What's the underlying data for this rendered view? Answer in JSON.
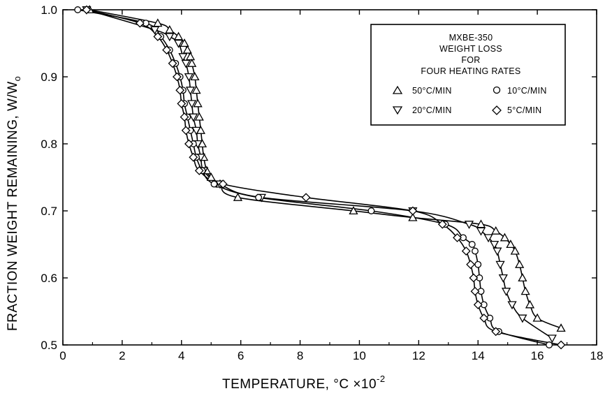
{
  "chart_data": {
    "type": "line",
    "xlabel": "TEMPERATURE, °C ×10",
    "xlabel_exponent": "-2",
    "ylabel": "FRACTION WEIGHT REMAINING,  W/W",
    "ylabel_subscript": "o",
    "xlim": [
      0,
      18
    ],
    "ylim": [
      0.5,
      1.0
    ],
    "x_ticks": [
      "0",
      "2",
      "4",
      "6",
      "8",
      "10",
      "12",
      "14",
      "16",
      "18"
    ],
    "y_ticks": [
      "0.5",
      "0.6",
      "0.7",
      "0.8",
      "0.9",
      "1.0"
    ],
    "grid": false,
    "legend": {
      "placement": "top-right",
      "title_lines": [
        "MXBE-350",
        "WEIGHT LOSS",
        "FOR",
        "FOUR HEATING RATES"
      ],
      "entries": [
        {
          "marker": "triangle-up",
          "label": "50°C/MIN"
        },
        {
          "marker": "circle",
          "label": "10°C/MIN"
        },
        {
          "marker": "triangle-down",
          "label": "20°C/MIN"
        },
        {
          "marker": "diamond",
          "label": "5°C/MIN"
        }
      ]
    },
    "series": [
      {
        "name": "50°C/MIN",
        "marker": "triangle-up",
        "points": [
          [
            0.9,
            1.0
          ],
          [
            3.2,
            0.98
          ],
          [
            3.6,
            0.97
          ],
          [
            3.9,
            0.96
          ],
          [
            4.1,
            0.95
          ],
          [
            4.2,
            0.94
          ],
          [
            4.3,
            0.93
          ],
          [
            4.35,
            0.92
          ],
          [
            4.45,
            0.9
          ],
          [
            4.5,
            0.88
          ],
          [
            4.55,
            0.86
          ],
          [
            4.6,
            0.84
          ],
          [
            4.65,
            0.82
          ],
          [
            4.7,
            0.8
          ],
          [
            4.75,
            0.78
          ],
          [
            4.85,
            0.76
          ],
          [
            5.0,
            0.75
          ],
          [
            5.3,
            0.74
          ],
          [
            5.9,
            0.72
          ],
          [
            9.8,
            0.7
          ],
          [
            11.8,
            0.69
          ],
          [
            14.1,
            0.68
          ],
          [
            14.6,
            0.67
          ],
          [
            14.9,
            0.66
          ],
          [
            15.1,
            0.65
          ],
          [
            15.25,
            0.64
          ],
          [
            15.4,
            0.62
          ],
          [
            15.5,
            0.6
          ],
          [
            15.6,
            0.58
          ],
          [
            15.75,
            0.56
          ],
          [
            16.0,
            0.54
          ],
          [
            16.8,
            0.525
          ]
        ]
      },
      {
        "name": "20°C/MIN",
        "marker": "triangle-down",
        "points": [
          [
            0.8,
            1.0
          ],
          [
            3.1,
            0.97
          ],
          [
            3.6,
            0.96
          ],
          [
            3.9,
            0.95
          ],
          [
            4.05,
            0.93
          ],
          [
            4.15,
            0.92
          ],
          [
            4.25,
            0.9
          ],
          [
            4.3,
            0.88
          ],
          [
            4.35,
            0.86
          ],
          [
            4.4,
            0.84
          ],
          [
            4.5,
            0.82
          ],
          [
            4.55,
            0.8
          ],
          [
            4.65,
            0.78
          ],
          [
            4.75,
            0.76
          ],
          [
            5.3,
            0.74
          ],
          [
            6.7,
            0.72
          ],
          [
            11.8,
            0.7
          ],
          [
            13.7,
            0.68
          ],
          [
            14.1,
            0.67
          ],
          [
            14.35,
            0.66
          ],
          [
            14.55,
            0.65
          ],
          [
            14.65,
            0.64
          ],
          [
            14.75,
            0.62
          ],
          [
            14.85,
            0.6
          ],
          [
            14.95,
            0.58
          ],
          [
            15.15,
            0.56
          ],
          [
            15.5,
            0.54
          ],
          [
            16.5,
            0.51
          ]
        ]
      },
      {
        "name": "10°C/MIN",
        "marker": "circle",
        "points": [
          [
            0.5,
            1.0
          ],
          [
            2.8,
            0.98
          ],
          [
            3.3,
            0.96
          ],
          [
            3.6,
            0.94
          ],
          [
            3.8,
            0.92
          ],
          [
            3.95,
            0.9
          ],
          [
            4.05,
            0.88
          ],
          [
            4.1,
            0.86
          ],
          [
            4.2,
            0.84
          ],
          [
            4.3,
            0.82
          ],
          [
            4.4,
            0.8
          ],
          [
            4.5,
            0.78
          ],
          [
            4.7,
            0.76
          ],
          [
            5.1,
            0.74
          ],
          [
            6.6,
            0.72
          ],
          [
            10.4,
            0.7
          ],
          [
            12.9,
            0.68
          ],
          [
            13.5,
            0.66
          ],
          [
            13.8,
            0.65
          ],
          [
            13.9,
            0.64
          ],
          [
            14.0,
            0.62
          ],
          [
            14.05,
            0.6
          ],
          [
            14.1,
            0.58
          ],
          [
            14.2,
            0.56
          ],
          [
            14.4,
            0.54
          ],
          [
            14.7,
            0.52
          ],
          [
            16.4,
            0.5
          ]
        ]
      },
      {
        "name": "5°C/MIN",
        "marker": "diamond",
        "points": [
          [
            0.8,
            1.0
          ],
          [
            2.6,
            0.98
          ],
          [
            3.2,
            0.96
          ],
          [
            3.5,
            0.94
          ],
          [
            3.7,
            0.92
          ],
          [
            3.85,
            0.9
          ],
          [
            3.95,
            0.88
          ],
          [
            4.0,
            0.86
          ],
          [
            4.1,
            0.84
          ],
          [
            4.15,
            0.82
          ],
          [
            4.25,
            0.8
          ],
          [
            4.4,
            0.78
          ],
          [
            4.6,
            0.76
          ],
          [
            5.4,
            0.74
          ],
          [
            8.2,
            0.72
          ],
          [
            11.8,
            0.7
          ],
          [
            12.8,
            0.68
          ],
          [
            13.3,
            0.66
          ],
          [
            13.6,
            0.64
          ],
          [
            13.75,
            0.62
          ],
          [
            13.85,
            0.6
          ],
          [
            13.9,
            0.58
          ],
          [
            14.0,
            0.56
          ],
          [
            14.2,
            0.54
          ],
          [
            14.6,
            0.52
          ],
          [
            16.8,
            0.5
          ]
        ]
      }
    ]
  }
}
